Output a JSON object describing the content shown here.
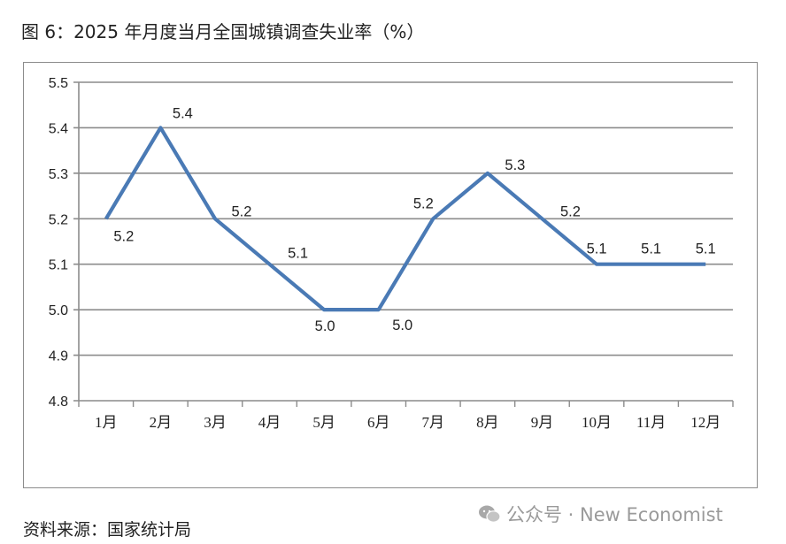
{
  "title": "图 6：2025 年月度当月全国城镇调查失业率（%）",
  "source": "资料来源：国家统计局",
  "watermark": {
    "text": "公众号 · New Economist",
    "icon": "wechat-icon"
  },
  "colors": {
    "line": "#4a7ab5",
    "grid": "#8c8c8c",
    "frame": "#8c8c8c"
  },
  "chart_data": {
    "type": "line",
    "title": "",
    "xlabel": "",
    "ylabel": "",
    "categories": [
      "1月",
      "2月",
      "3月",
      "4月",
      "5月",
      "6月",
      "7月",
      "8月",
      "9月",
      "10月",
      "11月",
      "12月"
    ],
    "series": [
      {
        "values": [
          5.2,
          5.4,
          5.2,
          5.1,
          5.0,
          5.0,
          5.2,
          5.3,
          5.2,
          5.1,
          5.1,
          5.1
        ]
      }
    ],
    "data_labels": [
      "5.2",
      "5.4",
      "5.2",
      "5.1",
      "5.0",
      "5.0",
      "5.2",
      "5.3",
      "5.2",
      "5.1",
      "5.1",
      "5.1"
    ],
    "ylim": [
      4.8,
      5.5
    ],
    "yticks": [
      "5.5",
      "5.4",
      "5.3",
      "5.2",
      "5.1",
      "5.0",
      "4.9",
      "4.8"
    ],
    "grid": true,
    "legend": "none"
  }
}
